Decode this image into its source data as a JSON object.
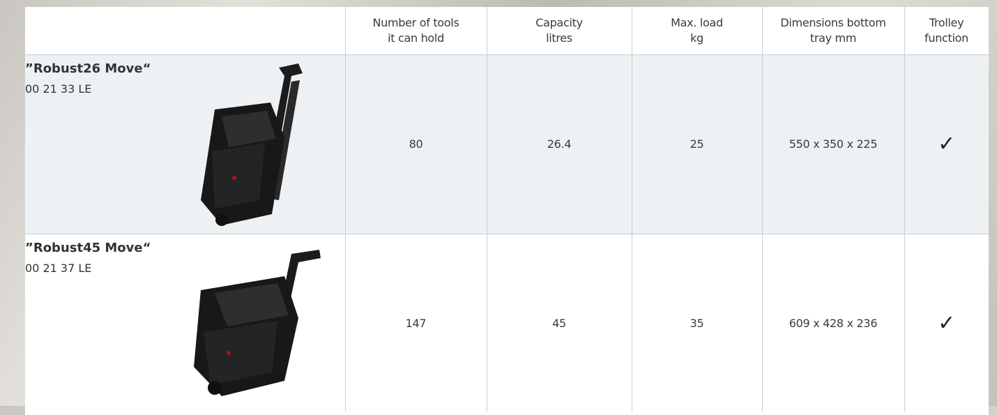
{
  "table": {
    "headers": [
      [
        "Number of tools",
        "it can hold"
      ],
      [
        "Capacity",
        "litres"
      ],
      [
        "Max. load",
        "kg"
      ],
      [
        "Dimensions bottom",
        "tray mm"
      ],
      [
        "Trolley",
        "function"
      ]
    ],
    "rows": [
      {
        "name": "”Robust26 Move“",
        "code": "00 21 33 LE",
        "cells": [
          "80",
          "26.4",
          "25",
          "550 x 350 x 225",
          "✓"
        ]
      },
      {
        "name": "”Robust45 Move“",
        "code": "00 21 37 LE",
        "cells": [
          "147",
          "45",
          "35",
          "609 x 428 x 236",
          "✓"
        ]
      }
    ]
  }
}
